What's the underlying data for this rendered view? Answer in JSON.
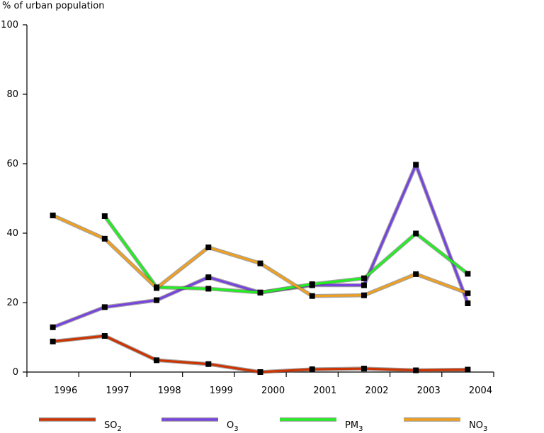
{
  "chart_data": {
    "type": "line",
    "ylabel": "% of urban population",
    "ylim": [
      0,
      100
    ],
    "y_ticks": [
      "0",
      "20",
      "40",
      "60",
      "80",
      "100"
    ],
    "x_ticks": [
      "1996",
      "1997",
      "1998",
      "1999",
      "2000",
      "2001",
      "2002",
      "2003",
      "2004"
    ],
    "x": [
      1995.5,
      1996.5,
      1997.5,
      1998.5,
      1999.5,
      2000.5,
      2001.5,
      2002.5,
      2003.5
    ],
    "xlim": [
      1995,
      2004
    ],
    "grid": false,
    "legend_position": "bottom",
    "series": [
      {
        "name": "SO",
        "subscript": "2",
        "color": "#cc3300",
        "values": [
          8.8,
          10.4,
          3.4,
          2.3,
          0.0,
          0.8,
          1.0,
          0.5,
          0.7
        ]
      },
      {
        "name": "O",
        "subscript": "3",
        "color": "#7744dd",
        "values": [
          12.9,
          18.7,
          20.7,
          27.3,
          22.9,
          25.0,
          25.0,
          59.7,
          19.8
        ]
      },
      {
        "name": "PM",
        "subscript": "3",
        "color": "#22ee22",
        "values": [
          null,
          44.9,
          24.4,
          24.0,
          22.9,
          25.3,
          27.0,
          39.9,
          28.3
        ]
      },
      {
        "name": "NO",
        "subscript": "3",
        "color": "#f0a020",
        "values": [
          45.1,
          38.4,
          24.2,
          35.9,
          31.3,
          21.9,
          22.1,
          28.2,
          22.7
        ]
      }
    ]
  }
}
